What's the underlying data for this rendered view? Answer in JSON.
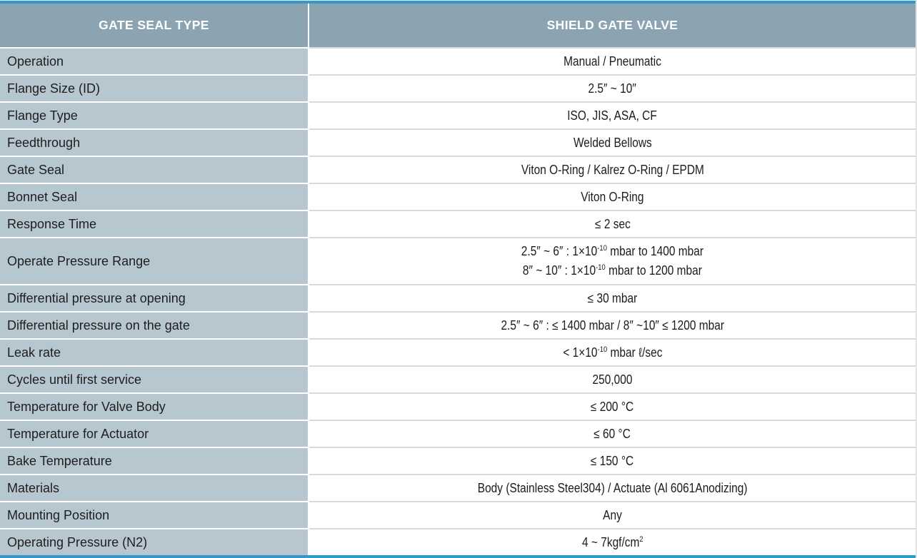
{
  "colors": {
    "accent": "#3399cc",
    "header_bg": "#8ca4b2",
    "label_bg": "#b7c7d0",
    "value_bg": "#ffffff",
    "row_divider_left": "#ffffff",
    "row_divider_right": "#d9d9d9",
    "header_text": "#ffffff",
    "body_text": "#1e1e1e"
  },
  "header": {
    "left": "GATE SEAL TYPE",
    "right": "SHIELD GATE VALVE"
  },
  "rows": [
    {
      "label": "Operation",
      "value": "Manual / Pneumatic"
    },
    {
      "label": "Flange Size (ID)",
      "value": "2.5″ ~ 10″"
    },
    {
      "label": "Flange Type",
      "value": "ISO, JIS, ASA, CF"
    },
    {
      "label": "Feedthrough",
      "value": "Welded Bellows"
    },
    {
      "label": "Gate Seal",
      "value": "Viton O-Ring / Kalrez O-Ring / EPDM"
    },
    {
      "label": "Bonnet Seal",
      "value": "Viton O-Ring"
    },
    {
      "label": "Response Time",
      "value": "≤ 2 sec"
    },
    {
      "label": "Operate Pressure Range",
      "lines": [
        {
          "pre": "2.5″ ~ 6″ : 1×10",
          "sup": "-10",
          "post": " mbar to 1400 mbar"
        },
        {
          "pre": "8″ ~ 10″ : 1×10",
          "sup": "-10",
          "post": " mbar to 1200 mbar"
        }
      ]
    },
    {
      "label": "Differential pressure at opening",
      "value": "≤ 30 mbar"
    },
    {
      "label": "Differential pressure on the gate",
      "value": "2.5″ ~ 6″ : ≤ 1400 mbar / 8″ ~10″ ≤ 1200 mbar"
    },
    {
      "label": "Leak rate",
      "pre": "< 1×10",
      "sup": "-10",
      "post": " mbar ℓ/sec"
    },
    {
      "label": "Cycles until first service",
      "value": "250,000"
    },
    {
      "label": "Temperature for Valve Body",
      "value": "≤ 200 °C"
    },
    {
      "label": "Temperature for Actuator",
      "value": "≤ 60 °C"
    },
    {
      "label": "Bake Temperature",
      "value": "≤ 150 °C"
    },
    {
      "label": "Materials",
      "value": "Body (Stainless Steel304) / Actuate (Al 6061Anodizing)"
    },
    {
      "label": "Mounting Position",
      "value": "Any"
    },
    {
      "label": "Operating Pressure (N2)",
      "pre": "4 ~ 7kgf/cm",
      "sup": "2",
      "post": ""
    }
  ]
}
